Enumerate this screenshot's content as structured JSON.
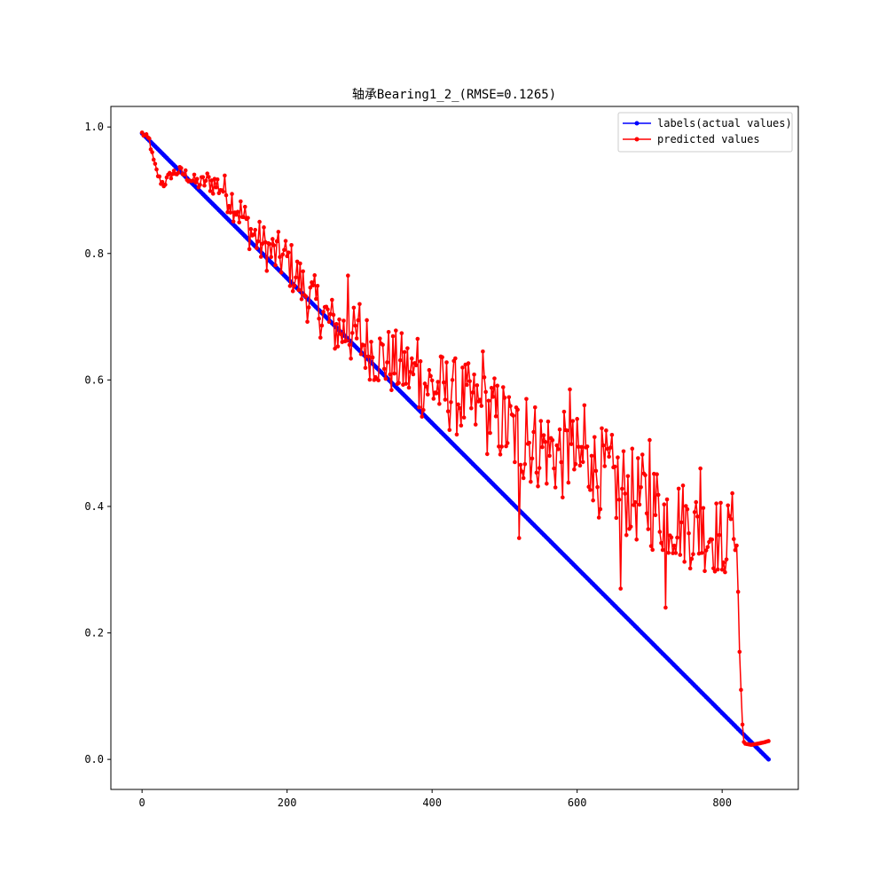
{
  "chart_data": {
    "type": "line",
    "title": "轴承Bearing1_2_(RMSE=0.1265)",
    "xlabel": "",
    "ylabel": "",
    "xlim": [
      -43,
      905
    ],
    "ylim": [
      -0.0475,
      1.0325
    ],
    "xticks": [
      0,
      200,
      400,
      600,
      800
    ],
    "yticks": [
      0.0,
      0.2,
      0.4,
      0.6,
      0.8,
      1.0
    ],
    "xtick_labels": [
      "0",
      "200",
      "400",
      "600",
      "800"
    ],
    "ytick_labels": [
      "0.0",
      "0.2",
      "0.4",
      "0.6",
      "0.8",
      "1.0"
    ],
    "legend_position": "top-right",
    "grid": false,
    "series": [
      {
        "name": "labels(actual values)",
        "color": "#0000ff",
        "marker": "circle",
        "linear": {
          "x_start": 0,
          "x_end": 864,
          "y_start": 0.99,
          "y_end": 0.0,
          "step": 2
        }
      },
      {
        "name": "predicted values",
        "color": "#ff0000",
        "marker": "circle",
        "anchors": [
          [
            0,
            0.99
          ],
          [
            5,
            0.985
          ],
          [
            10,
            0.98
          ],
          [
            15,
            0.95
          ],
          [
            20,
            0.93
          ],
          [
            25,
            0.915
          ],
          [
            30,
            0.91
          ],
          [
            40,
            0.925
          ],
          [
            50,
            0.93
          ],
          [
            60,
            0.925
          ],
          [
            70,
            0.915
          ],
          [
            80,
            0.91
          ],
          [
            90,
            0.915
          ],
          [
            100,
            0.91
          ],
          [
            110,
            0.905
          ],
          [
            120,
            0.89
          ],
          [
            130,
            0.875
          ],
          [
            140,
            0.855
          ],
          [
            150,
            0.835
          ],
          [
            160,
            0.82
          ],
          [
            170,
            0.81
          ],
          [
            180,
            0.8
          ],
          [
            190,
            0.795
          ],
          [
            200,
            0.79
          ],
          [
            210,
            0.77
          ],
          [
            220,
            0.75
          ],
          [
            230,
            0.73
          ],
          [
            240,
            0.72
          ],
          [
            250,
            0.705
          ],
          [
            260,
            0.69
          ],
          [
            270,
            0.68
          ],
          [
            280,
            0.675
          ],
          [
            290,
            0.67
          ],
          [
            300,
            0.66
          ],
          [
            310,
            0.655
          ],
          [
            320,
            0.645
          ],
          [
            330,
            0.635
          ],
          [
            340,
            0.63
          ],
          [
            350,
            0.625
          ],
          [
            360,
            0.62
          ],
          [
            370,
            0.61
          ],
          [
            380,
            0.6
          ],
          [
            390,
            0.595
          ],
          [
            400,
            0.59
          ],
          [
            420,
            0.58
          ],
          [
            440,
            0.57
          ],
          [
            460,
            0.555
          ],
          [
            480,
            0.545
          ],
          [
            500,
            0.53
          ],
          [
            520,
            0.505
          ],
          [
            540,
            0.5
          ],
          [
            560,
            0.49
          ],
          [
            580,
            0.48
          ],
          [
            600,
            0.47
          ],
          [
            620,
            0.46
          ],
          [
            640,
            0.45
          ],
          [
            660,
            0.43
          ],
          [
            680,
            0.415
          ],
          [
            700,
            0.405
          ],
          [
            720,
            0.39
          ],
          [
            740,
            0.38
          ],
          [
            760,
            0.365
          ],
          [
            780,
            0.36
          ],
          [
            800,
            0.35
          ],
          [
            810,
            0.35
          ],
          [
            818,
            0.38
          ],
          [
            821,
            0.33
          ],
          [
            823,
            0.2
          ],
          [
            825,
            0.14
          ],
          [
            827,
            0.08
          ],
          [
            829,
            0.03
          ],
          [
            831,
            0.025
          ],
          [
            840,
            0.023
          ],
          [
            850,
            0.025
          ],
          [
            858,
            0.027
          ],
          [
            864,
            0.029
          ]
        ],
        "noise_amplitude_by_x": [
          [
            0,
            0.004
          ],
          [
            80,
            0.012
          ],
          [
            120,
            0.03
          ],
          [
            200,
            0.04
          ],
          [
            300,
            0.05
          ],
          [
            500,
            0.07
          ],
          [
            700,
            0.075
          ],
          [
            818,
            0.06
          ],
          [
            822,
            0.0
          ],
          [
            864,
            0.0
          ]
        ],
        "outliers": [
          [
            284,
            0.765
          ],
          [
            300,
            0.72
          ],
          [
            320,
            0.6
          ],
          [
            380,
            0.665
          ],
          [
            428,
            0.6
          ],
          [
            470,
            0.645
          ],
          [
            520,
            0.35
          ],
          [
            530,
            0.57
          ],
          [
            590,
            0.585
          ],
          [
            610,
            0.56
          ],
          [
            620,
            0.48
          ],
          [
            660,
            0.27
          ],
          [
            700,
            0.505
          ],
          [
            722,
            0.24
          ],
          [
            770,
            0.46
          ],
          [
            800,
            0.3
          ],
          [
            812,
            0.38
          ]
        ]
      }
    ]
  }
}
